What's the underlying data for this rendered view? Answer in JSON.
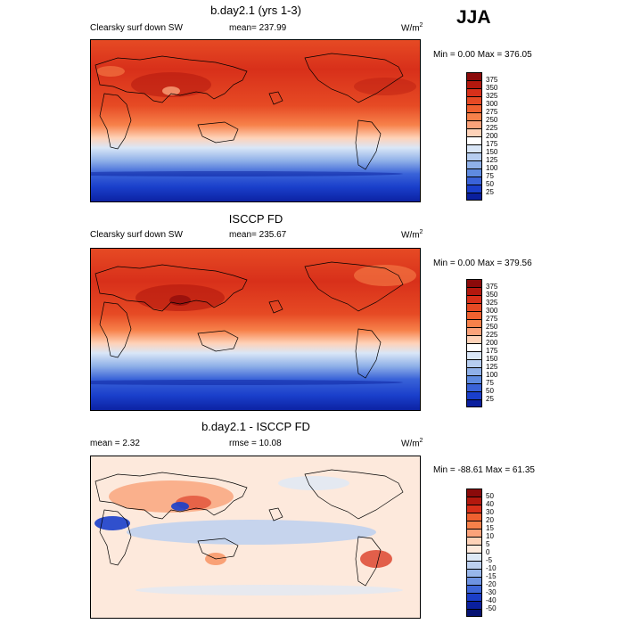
{
  "season": "JJA",
  "panels": [
    {
      "title": "b.day2.1 (yrs 1-3)",
      "left_label": "Clearsky surf down SW",
      "center_label": "mean= 237.99",
      "units": "W/m",
      "units_sup": "2",
      "minmax": "Min =   0.00 Max = 376.05",
      "colorbar_labels": [
        "375",
        "350",
        "325",
        "300",
        "275",
        "250",
        "225",
        "200",
        "175",
        "150",
        "125",
        "100",
        "75",
        "50",
        "25"
      ]
    },
    {
      "title": "ISCCP FD",
      "left_label": "Clearsky surf down SW",
      "center_label": "mean= 235.67",
      "units": "W/m",
      "units_sup": "2",
      "minmax": "Min =   0.00 Max = 379.56",
      "colorbar_labels": [
        "375",
        "350",
        "325",
        "300",
        "275",
        "250",
        "225",
        "200",
        "175",
        "150",
        "125",
        "100",
        "75",
        "50",
        "25"
      ]
    },
    {
      "title": "b.day2.1 - ISCCP FD",
      "left_label": "mean =   2.32",
      "center_label": "rmse =  10.08",
      "units": "W/m",
      "units_sup": "2",
      "minmax": "Min = -88.61 Max =  61.35",
      "colorbar_labels": [
        "50",
        "40",
        "30",
        "20",
        "15",
        "10",
        "5",
        "0",
        "-5",
        "-10",
        "-15",
        "-20",
        "-30",
        "-40",
        "-50"
      ]
    }
  ],
  "colors": {
    "abs_scale": [
      "#8b0a0a",
      "#b3180e",
      "#d8301a",
      "#e64a24",
      "#ef6130",
      "#f7814a",
      "#fba27a",
      "#fed2b8",
      "#ffffff",
      "#d9e6f7",
      "#b6cdf0",
      "#8fb0e8",
      "#5f8be0",
      "#3a63d8",
      "#1a3fcb",
      "#0a1f9e"
    ],
    "diff_scale": [
      "#8b0a0a",
      "#b3180e",
      "#d8301a",
      "#ef6130",
      "#f7814a",
      "#fba27a",
      "#fed2b8",
      "#fde9dc",
      "#dde8f6",
      "#bcd0f0",
      "#98b6ea",
      "#6e93e2",
      "#3e66d8",
      "#1b3ec9",
      "#0a1f9e",
      "#061373"
    ]
  }
}
